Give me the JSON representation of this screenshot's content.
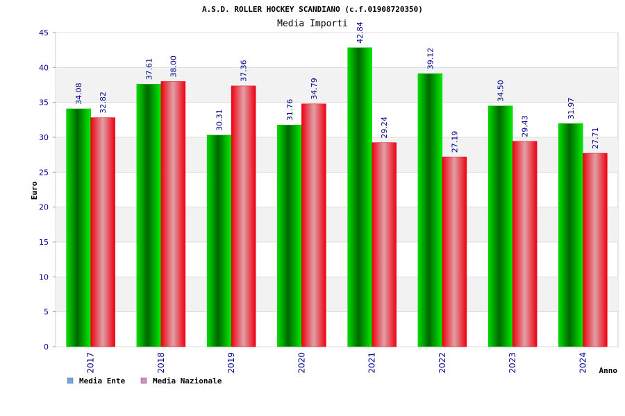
{
  "chart_data": {
    "type": "bar",
    "title": "A.S.D. ROLLER HOCKEY SCANDIANO (c.f.01908720350)",
    "subtitle": "Media Importi",
    "xlabel": "Anno",
    "ylabel": "Euro",
    "ylim": [
      0,
      45
    ],
    "yticks": [
      0,
      5,
      10,
      15,
      20,
      25,
      30,
      35,
      40,
      45
    ],
    "categories": [
      "2017",
      "2018",
      "2019",
      "2020",
      "2021",
      "2022",
      "2023",
      "2024"
    ],
    "series": [
      {
        "name": "Media Ente",
        "values": [
          34.08,
          37.61,
          30.31,
          31.76,
          42.84,
          39.12,
          34.5,
          31.97
        ],
        "labels": [
          "34.08",
          "37.61",
          "30.31",
          "31.76",
          "42.84",
          "39.12",
          "34.50",
          "31.97"
        ],
        "color": "#00cc00",
        "legend_color": "#6fa8dc"
      },
      {
        "name": "Media Nazionale",
        "values": [
          32.82,
          38.0,
          37.36,
          34.79,
          29.24,
          27.19,
          29.43,
          27.71
        ],
        "labels": [
          "32.82",
          "38.00",
          "37.36",
          "34.79",
          "29.24",
          "27.19",
          "29.43",
          "27.71"
        ],
        "color": "#ee1122",
        "legend_color": "#d98cc0"
      }
    ],
    "grid": true,
    "legend_position": "bottom-left",
    "colors": {
      "axis_text": "#00008b",
      "title_text": "#000000",
      "subtitle_text": "#444444",
      "band": "#f2f2f2",
      "grid": "#dddddd"
    }
  }
}
